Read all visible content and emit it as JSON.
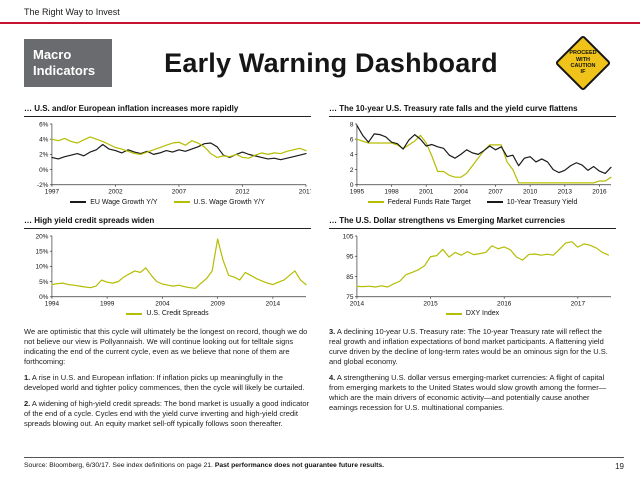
{
  "top_bar": {
    "tagline": "The Right Way to Invest"
  },
  "header": {
    "category_line1": "Macro",
    "category_line2": "Indicators",
    "title": "Early Warning Dashboard",
    "caution": {
      "line1": "PROCEED",
      "line2": "WITH",
      "line3": "CAUTION",
      "line4": "IF"
    }
  },
  "colors": {
    "accent_green": "#B4BD00",
    "line_black": "#1a1a1a",
    "brand_red": "#C41230",
    "category_gray": "#6A6B6E",
    "caution_yellow": "#EFC319"
  },
  "chart_data": [
    {
      "type": "line",
      "title": "… U.S. and/or European inflation increases more rapidly",
      "xlim": [
        1997,
        2017
      ],
      "ylim": [
        -2,
        6
      ],
      "x_start": 1997,
      "x_step": 0.5,
      "xtick_values": [
        1997,
        2002,
        2007,
        2012,
        2017
      ],
      "xtick_labels": [
        "1997",
        "2002",
        "2007",
        "2012",
        "2017"
      ],
      "ytick_values": [
        -2,
        0,
        2,
        4,
        6
      ],
      "ytick_labels": [
        "-2%",
        "0%",
        "2%",
        "4%",
        "6%"
      ],
      "grid": false,
      "legend_position": "bottom",
      "series": [
        {
          "name": "EU Wage Growth Y/Y",
          "color": "#1a1a1a",
          "values": [
            1.6,
            1.4,
            1.7,
            1.9,
            2.1,
            1.8,
            2.3,
            2.6,
            3.3,
            2.7,
            2.5,
            2.2,
            2.6,
            2.3,
            2.1,
            2.4,
            2.0,
            2.2,
            2.5,
            2.3,
            2.6,
            2.4,
            2.7,
            3.0,
            3.4,
            3.5,
            3.0,
            1.9,
            1.6,
            2.0,
            2.3,
            2.0,
            1.8,
            1.6,
            1.4,
            1.5,
            1.3,
            1.5,
            1.7,
            1.9,
            2.1
          ]
        },
        {
          "name": "U.S. Wage Growth Y/Y",
          "color": "#B4BD00",
          "values": [
            4.0,
            3.8,
            4.1,
            3.7,
            3.5,
            3.9,
            4.3,
            4.0,
            3.7,
            3.3,
            2.9,
            2.7,
            2.4,
            2.1,
            2.0,
            2.3,
            2.6,
            2.9,
            3.2,
            3.5,
            3.6,
            3.2,
            3.8,
            3.5,
            3.0,
            2.1,
            1.6,
            1.8,
            1.7,
            2.0,
            1.6,
            1.5,
            1.9,
            2.2,
            2.0,
            2.2,
            2.1,
            2.4,
            2.6,
            2.8,
            2.5
          ]
        }
      ]
    },
    {
      "type": "line",
      "title": "… The 10-year U.S. Treasury rate falls and the yield curve flattens",
      "xlim": [
        1995,
        2017
      ],
      "ylim": [
        0,
        8
      ],
      "x_start": 1995,
      "x_step": 0.5,
      "xtick_values": [
        1995,
        1998,
        2001,
        2004,
        2007,
        2010,
        2013,
        2016
      ],
      "xtick_labels": [
        "1995",
        "1998",
        "2001",
        "2004",
        "2007",
        "2010",
        "2013",
        "2016"
      ],
      "ytick_values": [
        0,
        2,
        4,
        6,
        8
      ],
      "ytick_labels": [
        "0",
        "2",
        "4",
        "6",
        "8"
      ],
      "grid": false,
      "legend_position": "bottom",
      "series": [
        {
          "name": "Federal Funds Rate Target",
          "color": "#B4BD00",
          "values": [
            6.0,
            5.75,
            5.5,
            5.5,
            5.5,
            5.5,
            5.5,
            5.25,
            4.75,
            5.25,
            5.75,
            6.5,
            5.5,
            3.75,
            1.75,
            1.75,
            1.25,
            1.0,
            1.0,
            1.5,
            2.5,
            3.5,
            4.5,
            5.25,
            5.25,
            5.25,
            3.0,
            2.0,
            0.25,
            0.25,
            0.25,
            0.25,
            0.25,
            0.25,
            0.25,
            0.25,
            0.25,
            0.25,
            0.25,
            0.25,
            0.25,
            0.25,
            0.5,
            0.5,
            1.0
          ]
        },
        {
          "name": "10-Year Treasury Yield",
          "color": "#1a1a1a",
          "values": [
            7.8,
            6.5,
            5.6,
            6.7,
            6.6,
            6.3,
            5.6,
            5.4,
            4.7,
            5.9,
            6.6,
            6.0,
            5.1,
            5.3,
            5.0,
            4.8,
            3.9,
            3.5,
            4.0,
            4.6,
            4.2,
            4.0,
            4.5,
            5.1,
            4.6,
            5.0,
            3.7,
            3.9,
            2.5,
            3.5,
            3.7,
            3.0,
            3.4,
            3.0,
            2.0,
            1.6,
            1.9,
            2.5,
            2.9,
            2.6,
            1.9,
            2.4,
            1.8,
            1.5,
            2.3
          ]
        }
      ]
    },
    {
      "type": "line",
      "title": "… High yield credit spreads widen",
      "xlim": [
        1994,
        2017
      ],
      "ylim": [
        0,
        20
      ],
      "x_start": 1994,
      "x_step": 0.5,
      "xtick_values": [
        1994,
        1999,
        2004,
        2009,
        2014
      ],
      "xtick_labels": [
        "1994",
        "1999",
        "2004",
        "2009",
        "2014"
      ],
      "ytick_values": [
        0,
        5,
        10,
        15,
        20
      ],
      "ytick_labels": [
        "0%",
        "5%",
        "10%",
        "15%",
        "20%"
      ],
      "grid": false,
      "legend_position": "bottom",
      "series": [
        {
          "name": "U.S. Credit Spreads",
          "color": "#B4BD00",
          "values": [
            4.0,
            4.3,
            4.5,
            4.0,
            3.8,
            3.5,
            3.2,
            3.0,
            3.5,
            5.5,
            4.8,
            4.5,
            5.0,
            6.5,
            7.5,
            8.5,
            8.0,
            9.5,
            7.0,
            5.0,
            4.2,
            3.8,
            3.5,
            3.8,
            3.3,
            3.0,
            2.8,
            4.5,
            6.0,
            8.5,
            19.0,
            12.0,
            7.0,
            6.5,
            5.5,
            8.0,
            7.0,
            6.0,
            5.2,
            4.5,
            4.0,
            4.8,
            5.5,
            7.0,
            8.5,
            5.5,
            4.0
          ]
        }
      ]
    },
    {
      "type": "line",
      "title": "… The U.S. Dollar strengthens vs Emerging Market currencies",
      "xlim": [
        2014,
        2017.45
      ],
      "ylim": [
        75,
        105
      ],
      "x_start": 2014,
      "x_step": 0.0833333,
      "xtick_values": [
        2014,
        2015,
        2016,
        2017
      ],
      "xtick_labels": [
        "2014",
        "2015",
        "2016",
        "2017"
      ],
      "ytick_values": [
        75,
        85,
        95,
        105
      ],
      "ytick_labels": [
        "75",
        "85",
        "95",
        "105"
      ],
      "grid": false,
      "legend_position": "bottom",
      "series": [
        {
          "name": "DXY Index",
          "color": "#B4BD00",
          "values": [
            80.1,
            80.0,
            80.2,
            79.8,
            80.4,
            79.8,
            81.4,
            82.7,
            85.9,
            87.0,
            88.3,
            90.3,
            94.8,
            95.3,
            98.4,
            94.6,
            96.9,
            95.5,
            97.3,
            95.8,
            96.3,
            96.9,
            100.2,
            98.7,
            99.6,
            98.2,
            94.6,
            93.1,
            95.9,
            96.1,
            95.5,
            96.0,
            95.5,
            98.4,
            101.5,
            102.2,
            99.5,
            101.1,
            100.4,
            99.1,
            96.9,
            95.6
          ]
        }
      ]
    }
  ],
  "commentary": {
    "left": [
      {
        "bold": "",
        "text": "We are optimistic that this cycle will ultimately be the longest on record, though we do not believe our view is Pollyannaish. We will continue looking out for telltale signs indicating the end of the current cycle, even as we believe that none of them are forthcoming:"
      },
      {
        "bold": "1.",
        "text": " A rise in U.S. and European inflation: If inflation picks up meaningfully in the developed world and tighter policy commences, then the cycle will likely be curtailed."
      },
      {
        "bold": "2.",
        "text": " A widening of high-yield credit spreads: The bond market is usually a good indicator of the end of a cycle. Cycles end with the yield curve inverting and high-yield credit spreads blowing out. An equity market sell-off typically follows soon thereafter."
      }
    ],
    "right": [
      {
        "bold": "3.",
        "text": " A declining 10-year U.S. Treasury rate: The 10-year Treasury rate will reflect the real growth and inflation expectations of bond market participants. A flattening yield curve driven by the decline of long-term rates would be an ominous sign for the U.S. and global economy."
      },
      {
        "bold": "4.",
        "text": " A strengthening U.S. dollar versus emerging-market currencies: A flight of capital from emerging markets to the United States would slow growth among the former—which are the main drivers of economic activity—and potentially cause another earnings recession for U.S. multinational companies."
      }
    ]
  },
  "footer": {
    "source_normal": "Source: Bloomberg, 6/30/17. See index definitions on page 21. ",
    "source_bold": "Past performance does not guarantee future results.",
    "page_number": "19"
  }
}
